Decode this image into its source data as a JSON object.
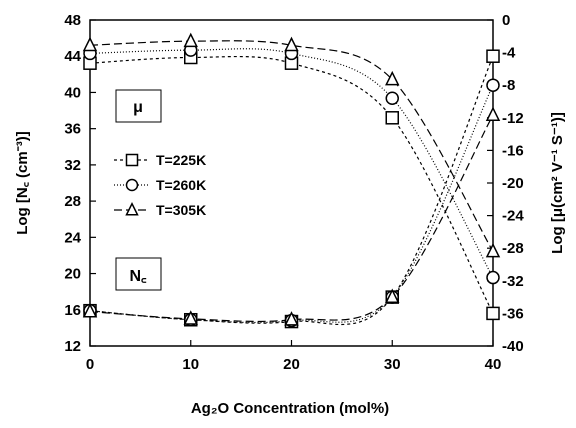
{
  "chart_data": {
    "type": "line",
    "xlabel": "Ag₂O Concentration (mol%)",
    "ylabel_left": "Log [N꜀ (cm⁻³)]",
    "ylabel_right": "Log [μ(cm² V⁻¹ S⁻¹)]",
    "xlim": [
      0,
      40
    ],
    "ylim_left": [
      12,
      48
    ],
    "ylim_right": [
      -40,
      0
    ],
    "x_ticks": [
      "0",
      "10",
      "20",
      "30",
      "40"
    ],
    "y_left_ticks": [
      "12",
      "16",
      "20",
      "24",
      "28",
      "32",
      "36",
      "40",
      "44",
      "48"
    ],
    "y_right_ticks": [
      "0",
      "-4",
      "-8",
      "-12",
      "-16",
      "-20",
      "-24",
      "-28",
      "-32",
      "-36",
      "-40"
    ],
    "grid": false,
    "legend_position": "center-left",
    "legend": [
      "T=225K",
      "T=260K",
      "T=305K"
    ],
    "labels": {
      "mu": "μ",
      "nc": "N꜀"
    },
    "x": [
      0,
      10,
      20,
      30,
      40
    ],
    "series": [
      {
        "name": "T=225K",
        "marker": "square",
        "dash": "3,3",
        "quantity": "N_C",
        "axis": "left",
        "values": [
          15.9,
          14.9,
          14.7,
          17.4,
          44.0
        ]
      },
      {
        "name": "T=260K",
        "marker": "circle",
        "dash": "1,2",
        "quantity": "N_C",
        "axis": "left",
        "values": [
          15.9,
          14.9,
          14.8,
          17.4,
          40.8
        ]
      },
      {
        "name": "T=305K",
        "marker": "triangle",
        "dash": "8,4",
        "quantity": "N_C",
        "axis": "left",
        "values": [
          15.8,
          15.0,
          14.9,
          17.4,
          37.5
        ]
      },
      {
        "name": "T=225K",
        "marker": "square",
        "dash": "3,3",
        "quantity": "mu",
        "axis": "right",
        "values": [
          -5.3,
          -4.6,
          -5.3,
          -12.0,
          -36.0
        ]
      },
      {
        "name": "T=260K",
        "marker": "circle",
        "dash": "1,2",
        "quantity": "mu",
        "axis": "right",
        "values": [
          -4.1,
          -3.7,
          -4.1,
          -9.6,
          -31.6
        ]
      },
      {
        "name": "T=305K",
        "marker": "triangle",
        "dash": "8,4",
        "quantity": "mu",
        "axis": "right",
        "values": [
          -3.1,
          -2.6,
          -3.1,
          -7.3,
          -28.4
        ]
      }
    ]
  }
}
